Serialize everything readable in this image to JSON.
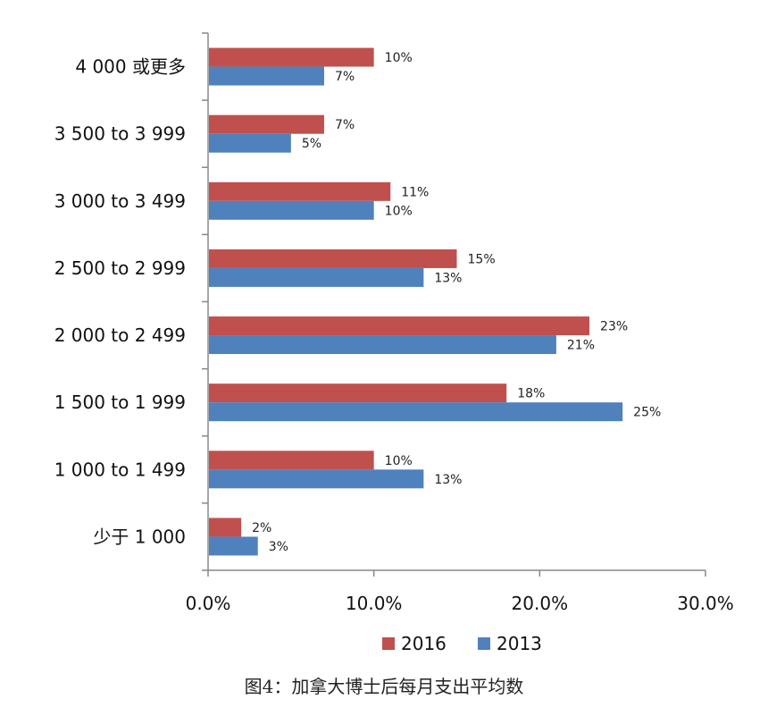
{
  "chart_data": {
    "type": "bar",
    "orientation": "horizontal",
    "categories": [
      "4 000  或更多",
      "3 500 to 3 999",
      "3 000 to 3 499",
      "2 500 to 2 999",
      "2 000 to 2 499",
      "1 500 to 1 999",
      "1 000 to 1 499",
      "少于 1 000"
    ],
    "series": [
      {
        "name": "2016",
        "color": "#c0504d",
        "values": [
          0.1,
          0.07,
          0.11,
          0.15,
          0.23,
          0.18,
          0.1,
          0.02
        ],
        "labels": [
          "10%",
          "7%",
          "11%",
          "15%",
          "23%",
          "18%",
          "10%",
          "2%"
        ]
      },
      {
        "name": "2013",
        "color": "#4f81bd",
        "values": [
          0.07,
          0.05,
          0.1,
          0.13,
          0.21,
          0.25,
          0.13,
          0.03
        ],
        "labels": [
          "7%",
          "5%",
          "10%",
          "13%",
          "21%",
          "25%",
          "13%",
          "3%"
        ]
      }
    ],
    "xlim": [
      0,
      0.3
    ],
    "xticks": [
      0,
      0.1,
      0.2,
      0.3
    ],
    "xtick_labels": [
      "0.0%",
      "10.0%",
      "20.0%",
      "30.0%"
    ],
    "grid": false,
    "legend_position": "bottom"
  },
  "caption": "图4：加拿大博士后每月支出平均数"
}
